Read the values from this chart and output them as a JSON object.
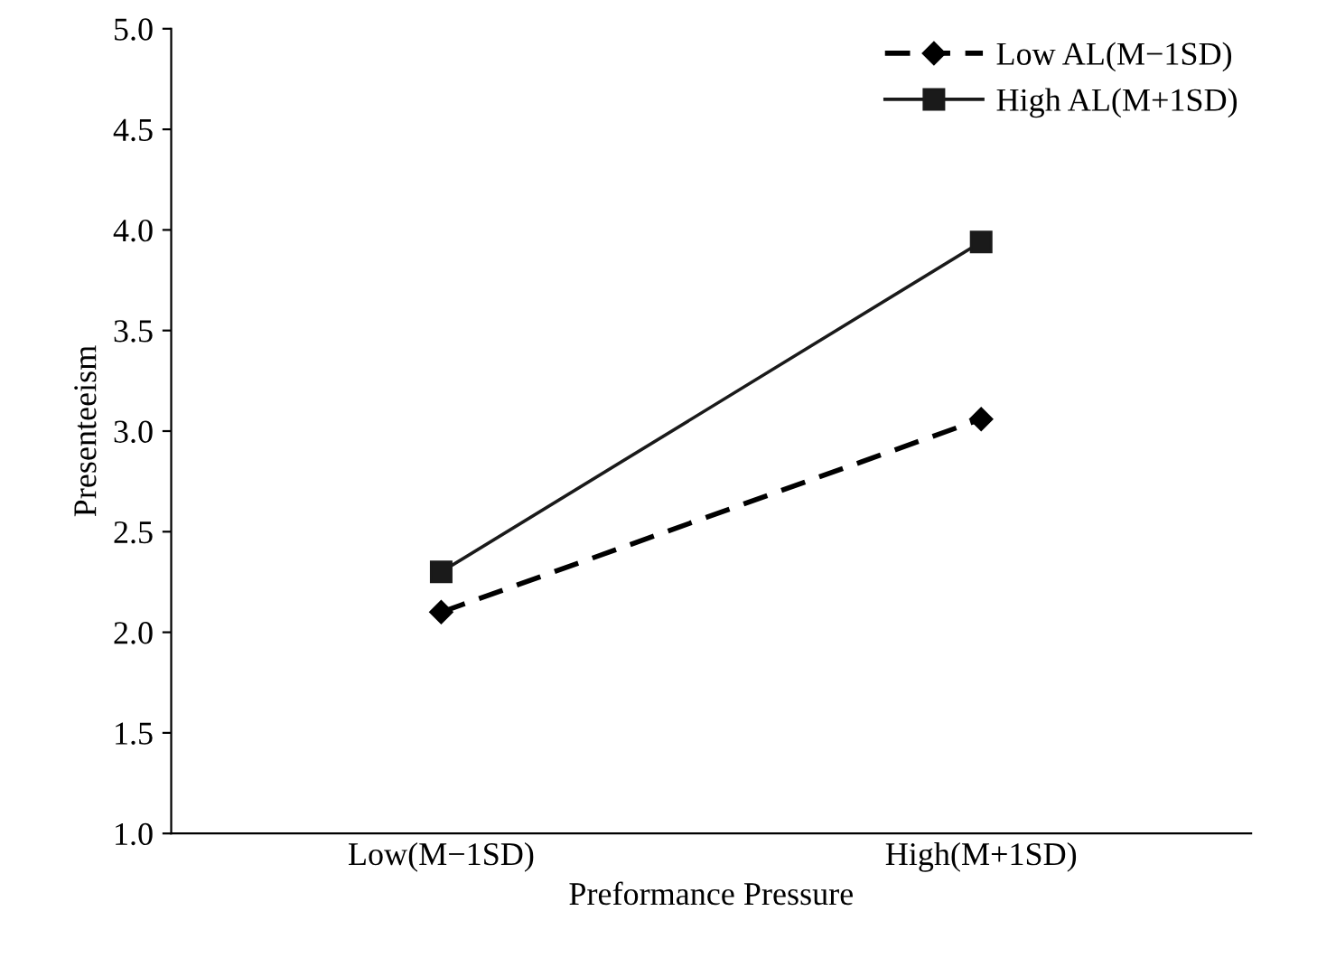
{
  "chart_data": {
    "type": "line",
    "xlabel": "Preformance Pressure",
    "ylabel": "Presenteeism",
    "categories": [
      "Low(M−1SD)",
      "High(M+1SD)"
    ],
    "series": [
      {
        "name": "Low AL(M−1SD)",
        "color": "#000000",
        "values": [
          2.1,
          3.06
        ],
        "marker": "diamond",
        "line_style": "dashed"
      },
      {
        "name": "High AL(M+1SD)",
        "color": "#1a1a1a",
        "values": [
          2.3,
          3.94
        ],
        "marker": "square",
        "line_style": "solid"
      }
    ],
    "ylim": [
      1.0,
      5.0
    ],
    "yticks": [
      {
        "value": 1.0,
        "label": "1.0"
      },
      {
        "value": 1.5,
        "label": "1.5"
      },
      {
        "value": 2.0,
        "label": "2.0"
      },
      {
        "value": 2.5,
        "label": "2.5"
      },
      {
        "value": 3.0,
        "label": "3.0"
      },
      {
        "value": 3.5,
        "label": "3.5"
      },
      {
        "value": 4.0,
        "label": "4.0"
      },
      {
        "value": 4.5,
        "label": "4.5"
      },
      {
        "value": 5.0,
        "label": "5.0"
      }
    ],
    "grid": false,
    "legend": "top right"
  }
}
